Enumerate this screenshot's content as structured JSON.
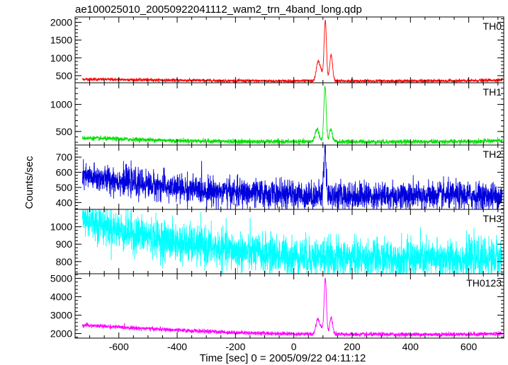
{
  "title": "ae100025010_20050922041112_wam2_trn_4band_long.qdp",
  "xlabel": "Time [sec] 0 = 2005/09/22 04:11:12",
  "ylabel": "Counts/sec",
  "chart_data": {
    "type": "line",
    "title": "ae100025010_20050922041112_wam2_trn_4band_long.qdp",
    "xlabel": "Time [sec] 0 = 2005/09/22 04:11:12",
    "ylabel": "Counts/sec",
    "xlim": [
      -750,
      720
    ],
    "x_ticks": [
      -600,
      -400,
      -200,
      0,
      200,
      400,
      600
    ],
    "grid": false,
    "legend": "none",
    "panels": [
      {
        "name": "TH0",
        "color": "#ff0000",
        "ylim": [
          300,
          2150
        ],
        "y_ticks": [
          500,
          1000,
          1500,
          2000
        ],
        "baseline_x": [
          -720,
          -600,
          -400,
          -200,
          0,
          200,
          400,
          600,
          710
        ],
        "baseline_y": [
          400,
          390,
          370,
          355,
          350,
          350,
          350,
          355,
          380
        ],
        "noise": 22,
        "peaks": [
          {
            "x": 83,
            "height": 530,
            "width": 6
          },
          {
            "x": 95,
            "height": 230,
            "width": 6
          },
          {
            "x": 108,
            "height": 1680,
            "width": 4
          },
          {
            "x": 128,
            "height": 720,
            "width": 5
          }
        ]
      },
      {
        "name": "TH1",
        "color": "#00e000",
        "ylim": [
          250,
          1400
        ],
        "y_ticks": [
          500,
          1000
        ],
        "baseline_x": [
          -720,
          -600,
          -400,
          -200,
          0,
          200,
          400,
          600,
          710
        ],
        "baseline_y": [
          380,
          360,
          330,
          315,
          310,
          310,
          310,
          315,
          330
        ],
        "noise": 20,
        "peaks": [
          {
            "x": 80,
            "height": 230,
            "width": 7
          },
          {
            "x": 107,
            "height": 1020,
            "width": 4
          },
          {
            "x": 127,
            "height": 230,
            "width": 5
          }
        ]
      },
      {
        "name": "TH2",
        "color": "#0000dd",
        "ylim": [
          355,
          780
        ],
        "y_ticks": [
          400,
          500,
          600,
          700
        ],
        "baseline_x": [
          -720,
          -600,
          -400,
          -200,
          0,
          200,
          400,
          600,
          710
        ],
        "baseline_y": [
          570,
          545,
          495,
          465,
          450,
          445,
          445,
          445,
          440
        ],
        "noise": 45,
        "peaks": [
          {
            "x": 107,
            "height": 310,
            "width": 4
          }
        ]
      },
      {
        "name": "TH3",
        "color": "#00ffff",
        "ylim": [
          730,
          1100
        ],
        "y_ticks": [
          800,
          900,
          1000
        ],
        "baseline_x": [
          -720,
          -600,
          -400,
          -200,
          0,
          200,
          400,
          600,
          710
        ],
        "baseline_y": [
          1050,
          980,
          910,
          860,
          830,
          820,
          815,
          815,
          825
        ],
        "noise": 55,
        "peaks": []
      },
      {
        "name": "TH0123",
        "color": "#ff00ff",
        "ylim": [
          1750,
          5250
        ],
        "y_ticks": [
          2000,
          3000,
          4000,
          5000
        ],
        "baseline_x": [
          -720,
          -600,
          -400,
          -200,
          0,
          200,
          400,
          600,
          710
        ],
        "baseline_y": [
          2450,
          2350,
          2180,
          2050,
          1980,
          1950,
          1950,
          1960,
          1990
        ],
        "noise": 55,
        "peaks": [
          {
            "x": 82,
            "height": 800,
            "width": 6
          },
          {
            "x": 95,
            "height": 300,
            "width": 6
          },
          {
            "x": 108,
            "height": 3000,
            "width": 4
          },
          {
            "x": 128,
            "height": 900,
            "width": 5
          }
        ]
      }
    ]
  }
}
